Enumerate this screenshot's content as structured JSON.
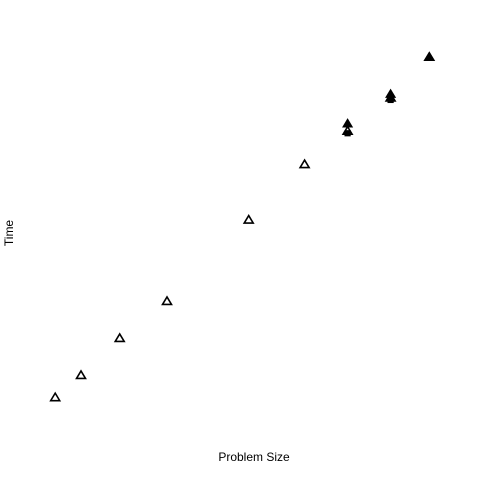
{
  "chart_data": {
    "type": "scatter",
    "title": "",
    "xlabel": "Problem Size",
    "ylabel": "Time",
    "grid": false,
    "legend": "none",
    "x_ticks_shown": false,
    "y_ticks_shown": false,
    "xlim": [
      0,
      1
    ],
    "ylim": [
      0,
      1
    ],
    "series": [
      {
        "marker": "open-triangle",
        "color": "#000000",
        "x": [
          0.04,
          0.1,
          0.19,
          0.3,
          0.49,
          0.62,
          0.72,
          0.82,
          0.91
        ],
        "y": [
          0.06,
          0.12,
          0.22,
          0.32,
          0.54,
          0.69,
          0.78,
          0.87,
          0.98
        ]
      },
      {
        "marker": "filled-triangle",
        "color": "#000000",
        "x": [
          0.72,
          0.82,
          0.91
        ],
        "y": [
          0.8,
          0.88,
          0.98
        ]
      },
      {
        "marker": "filled-square",
        "color": "#000000",
        "x": [
          0.72,
          0.82
        ],
        "y": [
          0.775,
          0.865
        ]
      }
    ]
  }
}
